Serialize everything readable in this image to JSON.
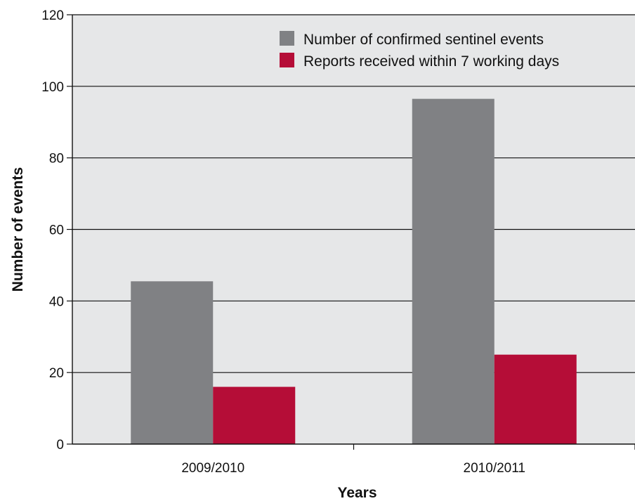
{
  "chart_data": {
    "type": "bar",
    "title": "",
    "xlabel": "Years",
    "ylabel": "Number of events",
    "categories": [
      "2009/2010",
      "2010/2011"
    ],
    "series": [
      {
        "name": "Number of confirmed sentinel events",
        "values": [
          45.5,
          96.5
        ],
        "color": "#808184"
      },
      {
        "name": "Reports received within 7 working days",
        "values": [
          16,
          25
        ],
        "color": "#b50d37"
      }
    ],
    "ylim": [
      0,
      120
    ],
    "yticks": [
      0,
      20,
      40,
      60,
      80,
      100,
      120
    ],
    "grid": true,
    "legend_position": "top-right",
    "plot_background": "#e6e7e8"
  }
}
